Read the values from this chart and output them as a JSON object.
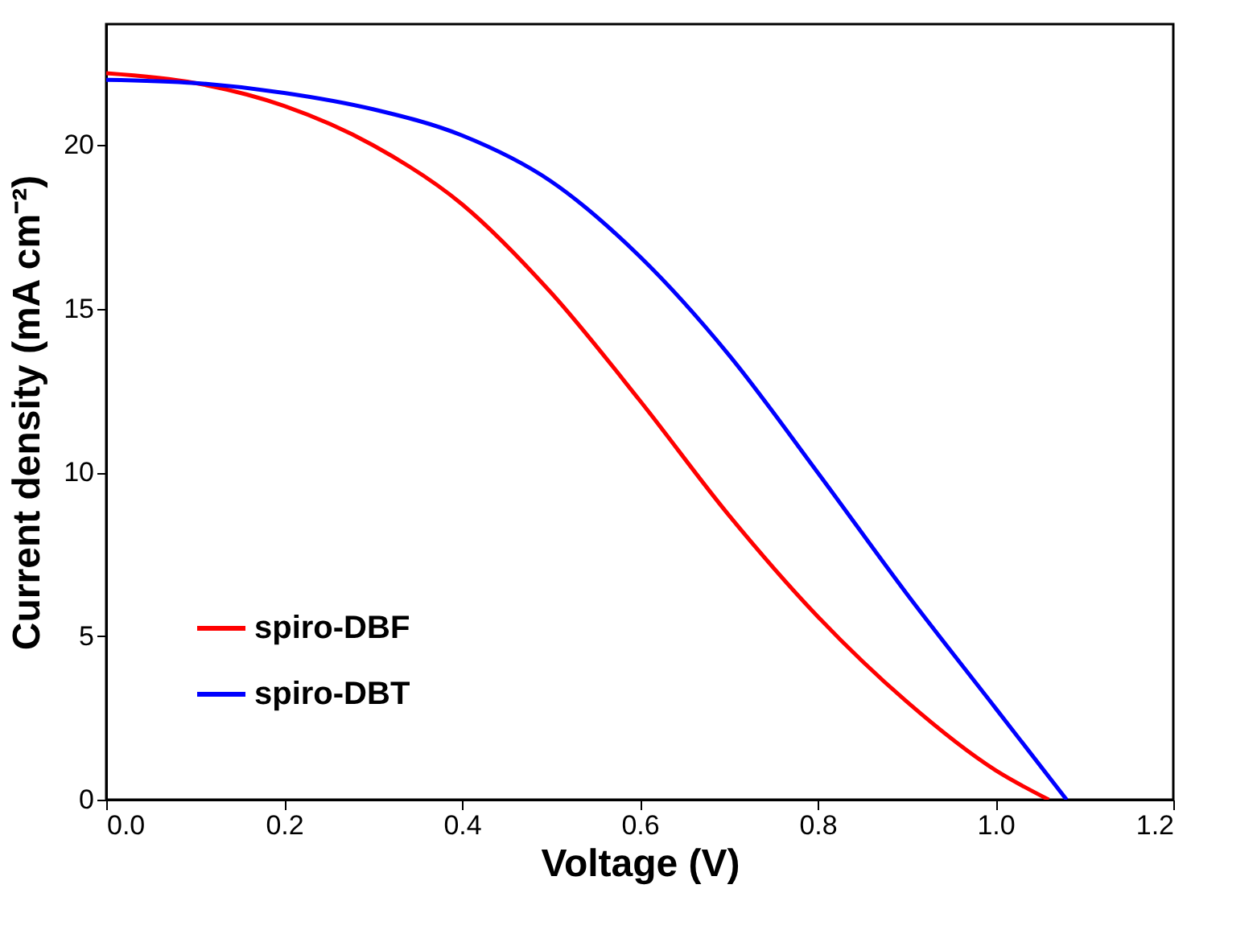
{
  "chart_data": {
    "type": "line",
    "xlabel": "Voltage (V)",
    "ylabel": "Current density (mA cm⁻²)",
    "xlim": [
      0,
      1.2
    ],
    "xticks": [
      {
        "value": 0,
        "label": "0.0"
      },
      0.2,
      0.4,
      0.6,
      0.8,
      {
        "value": 1.0,
        "label": "1.0"
      },
      1.2
    ],
    "ylim": [
      0,
      23.7
    ],
    "yticks": [
      0,
      5,
      10,
      15,
      20
    ],
    "grid": false,
    "legend": "bottom left",
    "marker": "none",
    "line_style": "solid",
    "series": [
      {
        "name": "spiro-DBF",
        "color": "#ff0000",
        "x": [
          0,
          0.1,
          0.2,
          0.3,
          0.4,
          0.5,
          0.6,
          0.7,
          0.8,
          0.9,
          1.0,
          1.06
        ],
        "values": [
          22.2,
          21.9,
          21.2,
          20.0,
          18.2,
          15.5,
          12.2,
          8.7,
          5.6,
          3.0,
          0.9,
          0
        ]
      },
      {
        "name": "spiro-DBT",
        "color": "#0000ff",
        "x": [
          0,
          0.1,
          0.2,
          0.3,
          0.4,
          0.5,
          0.6,
          0.7,
          0.8,
          0.9,
          1.0,
          1.08
        ],
        "values": [
          22.0,
          21.9,
          21.6,
          21.1,
          20.3,
          18.9,
          16.6,
          13.6,
          10.0,
          6.3,
          2.8,
          0
        ]
      }
    ]
  }
}
